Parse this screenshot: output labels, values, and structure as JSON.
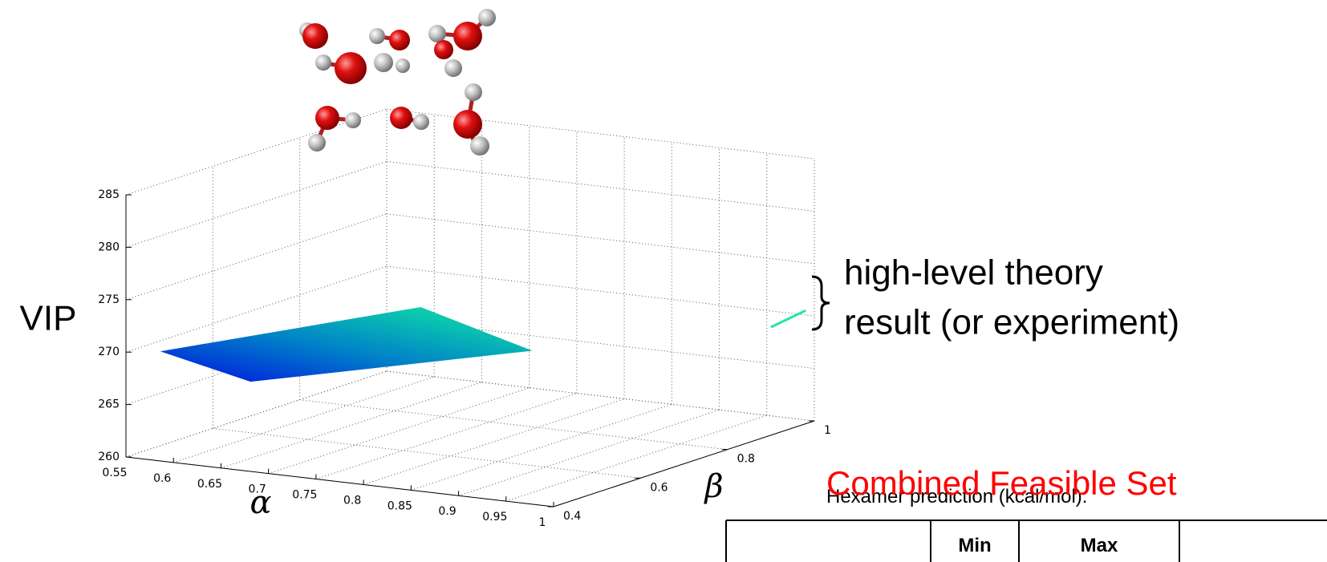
{
  "chart_data": {
    "type": "surface3d",
    "xlabel": "α",
    "ylabel": "β",
    "zlabel": "VIP",
    "xlim": [
      0.55,
      1
    ],
    "xticks": [
      0.55,
      0.6,
      0.65,
      0.7,
      0.75,
      0.8,
      0.85,
      0.9,
      0.95,
      1
    ],
    "ylim": [
      0.4,
      1
    ],
    "yticks": [
      0.4,
      0.6,
      0.8,
      1
    ],
    "zlim": [
      260,
      285
    ],
    "zticks": [
      260,
      265,
      270,
      275,
      280,
      285
    ],
    "grid": true,
    "surfaces": [
      {
        "x": [
          0.55,
          0.7,
          0.9,
          0.65
        ],
        "y": [
          0.479,
          0.75,
          0.57,
          0.468
        ],
        "z": [
          269,
          271.1,
          271.5,
          267.3
        ]
      },
      {
        "x": [
          1,
          1
        ],
        "y": [
          0.9,
          0.98
        ],
        "z": [
          270.3,
          270.8
        ]
      }
    ],
    "annotation": [
      "high-level theory",
      "result (or experiment)"
    ]
  },
  "slide": {
    "overlay_title": "Combined Feasible Set",
    "table": {
      "caption": "Hexamer prediction (kcal/mol):",
      "header": [
        "Min",
        "Max"
      ]
    }
  }
}
